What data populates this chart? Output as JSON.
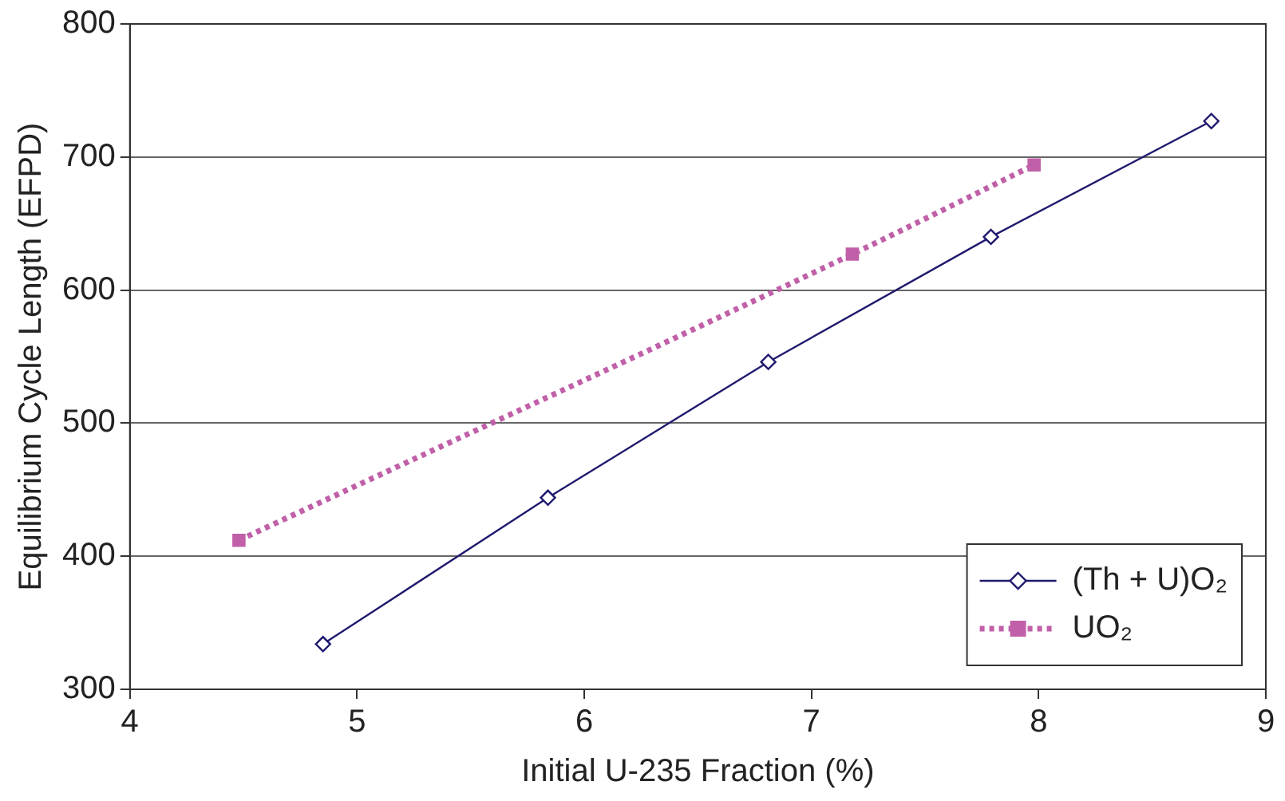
{
  "chart_data": {
    "type": "line",
    "xlabel": "Initial U-235 Fraction (%)",
    "ylabel": "Equilibrium Cycle Length (EFPD)",
    "xlim": [
      4,
      9
    ],
    "xticks": [
      4,
      5,
      6,
      7,
      8,
      9
    ],
    "ylim": [
      300,
      800
    ],
    "yticks": [
      300,
      400,
      500,
      600,
      700,
      800
    ],
    "grid": "y",
    "legend": "bottom right",
    "series": [
      {
        "name": "(Th + U)O₂",
        "color": "#1f1a6e",
        "marker": "diamond",
        "line_style": "solid",
        "x": [
          4.85,
          5.84,
          6.81,
          7.79,
          8.76
        ],
        "values": [
          334,
          444,
          546,
          640,
          727
        ]
      },
      {
        "name": "UO₂",
        "color": "#c060a8",
        "marker": "square",
        "line_style": "dotted",
        "x": [
          4.48,
          7.18,
          7.98
        ],
        "values": [
          412,
          627,
          694
        ]
      }
    ]
  }
}
